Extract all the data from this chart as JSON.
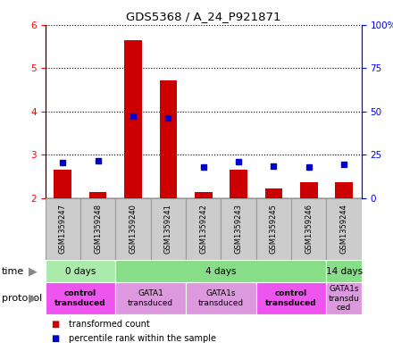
{
  "title": "GDS5368 / A_24_P921871",
  "samples": [
    "GSM1359247",
    "GSM1359248",
    "GSM1359240",
    "GSM1359241",
    "GSM1359242",
    "GSM1359243",
    "GSM1359245",
    "GSM1359246",
    "GSM1359244"
  ],
  "transformed_counts": [
    2.65,
    2.15,
    5.65,
    4.72,
    2.15,
    2.65,
    2.22,
    2.38,
    2.38
  ],
  "percentile_ranks": [
    20.5,
    21.5,
    47.5,
    46.5,
    18.0,
    21.0,
    18.5,
    18.0,
    19.5
  ],
  "ylim_left": [
    2.0,
    6.0
  ],
  "ylim_right": [
    0,
    100
  ],
  "yticks_left": [
    2,
    3,
    4,
    5,
    6
  ],
  "yticks_right": [
    0,
    25,
    50,
    75,
    100
  ],
  "ytick_labels_right": [
    "0",
    "25",
    "50",
    "75",
    "100%"
  ],
  "bar_color": "#cc0000",
  "dot_color": "#0000cc",
  "bar_width": 0.5,
  "time_groups": [
    {
      "label": "0 days",
      "start": 0,
      "end": 2,
      "color": "#aaeaaa"
    },
    {
      "label": "4 days",
      "start": 2,
      "end": 8,
      "color": "#88dd88"
    },
    {
      "label": "14 days",
      "start": 8,
      "end": 9,
      "color": "#88dd88"
    }
  ],
  "protocol_groups": [
    {
      "label": "control\ntransduced",
      "start": 0,
      "end": 2,
      "color": "#ee55ee",
      "bold": true
    },
    {
      "label": "GATA1\ntransduced",
      "start": 2,
      "end": 4,
      "color": "#dd99dd",
      "bold": false
    },
    {
      "label": "GATA1s\ntransduced",
      "start": 4,
      "end": 6,
      "color": "#dd99dd",
      "bold": false
    },
    {
      "label": "control\ntransduced",
      "start": 6,
      "end": 8,
      "color": "#ee55ee",
      "bold": true
    },
    {
      "label": "GATA1s\ntransdu\nced",
      "start": 8,
      "end": 9,
      "color": "#dd99dd",
      "bold": false
    }
  ],
  "legend_items": [
    {
      "label": "transformed count",
      "color": "#cc0000"
    },
    {
      "label": "percentile rank within the sample",
      "color": "#0000cc"
    }
  ],
  "sample_bg_color": "#cccccc",
  "sample_border_color": "#999999"
}
